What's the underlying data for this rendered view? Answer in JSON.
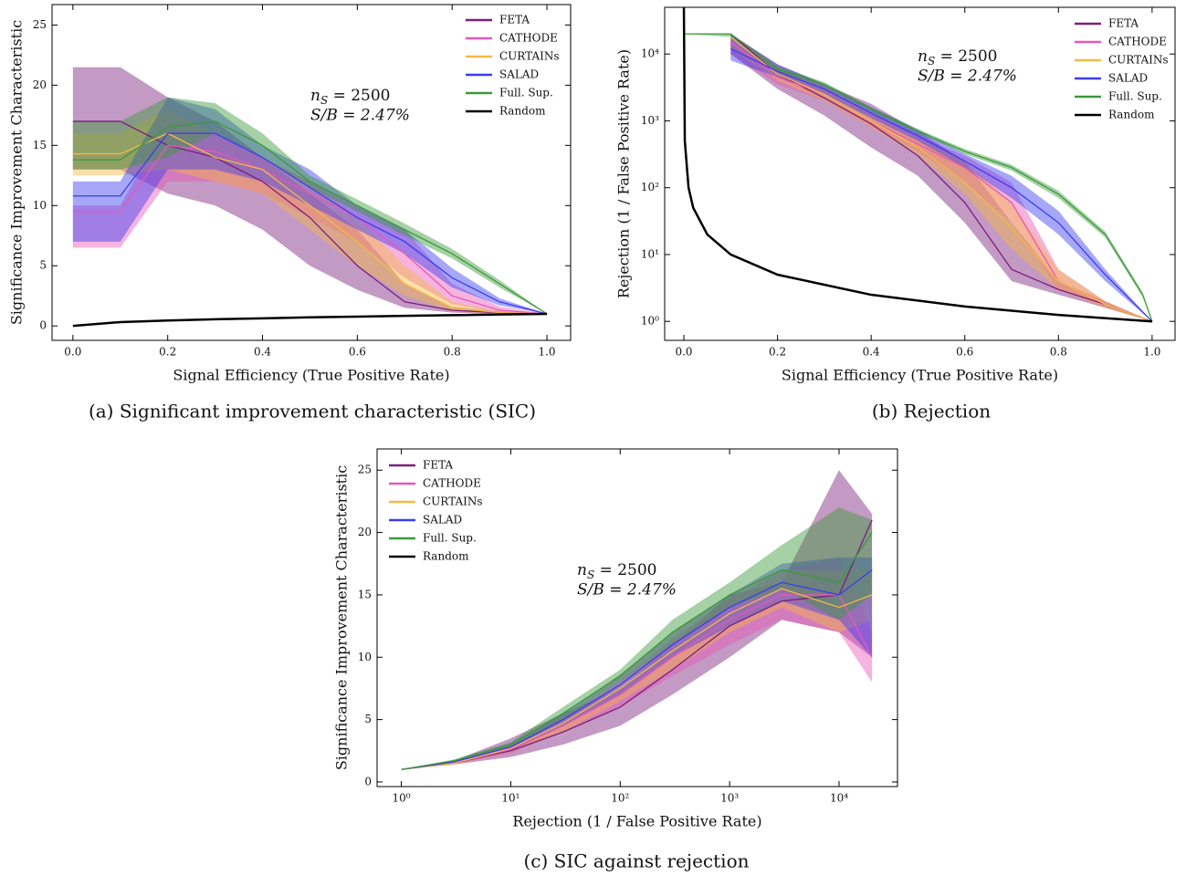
{
  "chart_data": [
    {
      "type": "line",
      "title": "(a) Significant improvement characteristic (SIC)",
      "xlabel": "Signal Efficiency (True Positive Rate)",
      "ylabel": "Significance Improvement Characteristic",
      "annotation": {
        "n": "n",
        "sub": "S",
        "rest": " = 2500",
        "line2": "S/B = 2.47%"
      },
      "xlim": [
        -0.044,
        1.05
      ],
      "ylim": [
        -1.2,
        26.7
      ],
      "yscale": "linear",
      "xscale": "linear",
      "legend": "upper right",
      "xticks": [
        {
          "value": 0,
          "label": "0.0"
        },
        0.2,
        0.4,
        0.6,
        0.8,
        {
          "value": 1,
          "label": "1.0"
        }
      ],
      "yticks": [
        0,
        5,
        10,
        15,
        20,
        25
      ],
      "series": [
        {
          "name": "FETA",
          "color": "#7b1f7c",
          "x": [
            0,
            0.1,
            0.2,
            0.3,
            0.4,
            0.5,
            0.6,
            0.7,
            0.8,
            0.9,
            1.0
          ],
          "values": [
            17,
            17,
            15,
            14,
            12,
            9,
            5,
            2,
            1.3,
            1.1,
            1
          ],
          "lower": [
            13,
            13,
            11,
            10,
            8,
            5,
            3,
            1.5,
            1.1,
            1,
            1
          ],
          "upper": [
            21.5,
            21.5,
            19,
            17,
            14,
            11,
            8,
            3.5,
            1.6,
            1.2,
            1
          ]
        },
        {
          "name": "CATHODE",
          "color": "#e857b8",
          "x": [
            0,
            0.1,
            0.2,
            0.3,
            0.4,
            0.5,
            0.6,
            0.7,
            0.8,
            0.9,
            1.0
          ],
          "values": [
            9.5,
            9.5,
            15,
            14.5,
            13,
            11,
            9,
            6,
            2.5,
            1.3,
            1
          ],
          "lower": [
            6.5,
            6.5,
            12,
            12,
            11,
            9,
            7,
            4,
            1.8,
            1.1,
            1
          ],
          "upper": [
            10,
            10,
            17,
            16,
            14,
            12,
            10,
            8,
            3.5,
            1.6,
            1
          ]
        },
        {
          "name": "CURTAINs",
          "color": "#f5b942",
          "x": [
            0,
            0.1,
            0.2,
            0.3,
            0.4,
            0.5,
            0.6,
            0.7,
            0.8,
            0.9,
            1.0
          ],
          "values": [
            14.3,
            14.3,
            16,
            14,
            13,
            10,
            7,
            3.5,
            1.5,
            1.1,
            1
          ],
          "lower": [
            12.5,
            12.5,
            13,
            12,
            11,
            8,
            5,
            2.5,
            1.2,
            1,
            1
          ],
          "upper": [
            16,
            16,
            18,
            16,
            14,
            12,
            9,
            5,
            2,
            1.2,
            1
          ]
        },
        {
          "name": "SALAD",
          "color": "#3c3cf0",
          "x": [
            0,
            0.1,
            0.2,
            0.3,
            0.4,
            0.5,
            0.6,
            0.7,
            0.8,
            0.9,
            1.0
          ],
          "values": [
            10.8,
            10.8,
            16,
            16,
            14,
            11.5,
            9,
            7,
            4,
            2,
            1
          ],
          "lower": [
            7,
            7,
            13,
            13,
            12,
            10,
            8,
            6,
            3.2,
            1.7,
            1
          ],
          "upper": [
            12,
            12,
            19,
            18,
            15,
            13,
            10,
            8,
            4.8,
            2.3,
            1
          ]
        },
        {
          "name": "Full. Sup.",
          "color": "#3a9a3a",
          "x": [
            0,
            0.1,
            0.2,
            0.3,
            0.4,
            0.5,
            0.6,
            0.7,
            0.8,
            0.9,
            1.0
          ],
          "values": [
            13.8,
            13.8,
            16.5,
            17,
            15,
            12,
            10,
            8,
            6,
            3.5,
            1
          ],
          "lower": [
            13,
            13,
            14,
            16,
            14,
            11.5,
            9.5,
            7.5,
            5.6,
            3.2,
            1
          ],
          "upper": [
            17,
            17,
            19,
            18.5,
            16,
            12.5,
            10.5,
            8.5,
            6.4,
            3.8,
            1
          ]
        },
        {
          "name": "Random",
          "color": "#000000",
          "x": [
            0,
            0.1,
            0.2,
            0.3,
            0.4,
            0.5,
            0.6,
            0.7,
            0.8,
            0.9,
            1.0
          ],
          "values": [
            0,
            0.32,
            0.45,
            0.55,
            0.63,
            0.71,
            0.77,
            0.84,
            0.89,
            0.95,
            1
          ]
        }
      ]
    },
    {
      "type": "line",
      "title": "(b) Rejection",
      "xlabel": "Signal Efficiency (True Positive Rate)",
      "ylabel": "Rejection (1 / False Positive Rate)",
      "annotation": {
        "n": "n",
        "sub": "S",
        "rest": " = 2500",
        "line2": "S/B = 2.47%"
      },
      "xlim": [
        -0.041,
        1.049
      ],
      "ylim": [
        0.52,
        50000
      ],
      "yscale": "log",
      "xscale": "linear",
      "legend": "upper right",
      "xticks": [
        {
          "value": 0,
          "label": "0.0"
        },
        0.2,
        0.4,
        0.6,
        0.8,
        {
          "value": 1,
          "label": "1.0"
        }
      ],
      "yticks": [
        {
          "value": 1,
          "label": "10⁰"
        },
        {
          "value": 10,
          "label": "10¹"
        },
        {
          "value": 100,
          "label": "10²"
        },
        {
          "value": 1000,
          "label": "10³"
        },
        {
          "value": 10000,
          "label": "10⁴"
        }
      ],
      "series": [
        {
          "name": "FETA",
          "color": "#7b1f7c",
          "x": [
            0.1,
            0.2,
            0.3,
            0.4,
            0.5,
            0.6,
            0.7,
            0.8,
            0.9,
            1.0
          ],
          "values": [
            20000,
            5000,
            2200,
            900,
            300,
            60,
            6,
            3,
            1.8,
            1
          ],
          "lower": [
            10000,
            3000,
            1200,
            400,
            150,
            30,
            4,
            2.5,
            1.6,
            1
          ],
          "upper": [
            20000,
            7000,
            3500,
            1800,
            700,
            250,
            30,
            4,
            2,
            1
          ]
        },
        {
          "name": "CATHODE",
          "color": "#e857b8",
          "x": [
            0.1,
            0.2,
            0.3,
            0.4,
            0.5,
            0.6,
            0.7,
            0.8,
            0.9,
            1.0
          ],
          "values": [
            15000,
            4500,
            2500,
            1000,
            450,
            200,
            60,
            4,
            1.8,
            1
          ],
          "lower": [
            10000,
            3500,
            2000,
            800,
            350,
            120,
            30,
            3,
            1.6,
            1
          ],
          "upper": [
            20000,
            6000,
            3200,
            1300,
            600,
            300,
            120,
            6,
            2,
            1
          ]
        },
        {
          "name": "CURTAINs",
          "color": "#f5b942",
          "x": [
            0.1,
            0.2,
            0.3,
            0.4,
            0.5,
            0.6,
            0.7,
            0.8,
            0.9,
            1.0
          ],
          "values": [
            18000,
            5000,
            2500,
            1000,
            400,
            120,
            25,
            4,
            1.8,
            1
          ],
          "lower": [
            12000,
            4000,
            2000,
            800,
            300,
            80,
            12,
            3,
            1.6,
            1
          ],
          "upper": [
            20000,
            6500,
            3200,
            1300,
            550,
            250,
            60,
            6,
            2,
            1
          ]
        },
        {
          "name": "SALAD",
          "color": "#3c3cf0",
          "x": [
            0.1,
            0.2,
            0.3,
            0.4,
            0.5,
            0.6,
            0.7,
            0.8,
            0.9,
            1.0
          ],
          "values": [
            12000,
            5500,
            3000,
            1300,
            600,
            250,
            100,
            30,
            5,
            1
          ],
          "lower": [
            8000,
            4500,
            2500,
            1100,
            500,
            200,
            70,
            20,
            4,
            1
          ],
          "upper": [
            20000,
            7000,
            3600,
            1600,
            750,
            320,
            150,
            45,
            6,
            1
          ]
        },
        {
          "name": "Full. Sup.",
          "color": "#3a9a3a",
          "x": [
            0,
            0.1,
            0.2,
            0.3,
            0.4,
            0.5,
            0.6,
            0.7,
            0.8,
            0.9,
            0.98,
            1.0
          ],
          "values": [
            20000,
            20000,
            6000,
            3500,
            1500,
            700,
            350,
            200,
            80,
            20,
            2.5,
            1
          ],
          "lower": [
            20000,
            18000,
            5500,
            3200,
            1400,
            650,
            320,
            180,
            70,
            18,
            2.3,
            1
          ],
          "upper": [
            20000,
            20000,
            6500,
            3800,
            1600,
            750,
            380,
            220,
            90,
            22,
            2.7,
            1
          ]
        },
        {
          "name": "Random",
          "color": "#000000",
          "x": [
            2e-05,
            0.002,
            0.01,
            0.02,
            0.05,
            0.1,
            0.2,
            0.4,
            0.6,
            0.8,
            1.0
          ],
          "values": [
            50000,
            500,
            100,
            50,
            20,
            10,
            5,
            2.5,
            1.67,
            1.25,
            1
          ]
        }
      ]
    },
    {
      "type": "line",
      "title": "(c) SIC against rejection",
      "xlabel": "Rejection (1 / False Positive Rate)",
      "ylabel": "Significance Improvement Characteristic",
      "annotation": {
        "n": "n",
        "sub": "S",
        "rest": " = 2500",
        "line2": "S/B = 2.47%"
      },
      "xlim": [
        0.6,
        34200
      ],
      "ylim": [
        -0.37,
        26.7
      ],
      "yscale": "linear",
      "xscale": "log",
      "legend": "upper left",
      "xticks": [
        {
          "value": 1,
          "label": "10⁰"
        },
        {
          "value": 10,
          "label": "10¹"
        },
        {
          "value": 100,
          "label": "10²"
        },
        {
          "value": 1000,
          "label": "10³"
        },
        {
          "value": 10000,
          "label": "10⁴"
        }
      ],
      "yticks": [
        0,
        5,
        10,
        15,
        20,
        25
      ],
      "series": [
        {
          "name": "FETA",
          "color": "#7b1f7c",
          "x": [
            1,
            3,
            10,
            30,
            100,
            300,
            1000,
            3000,
            10000,
            20000
          ],
          "values": [
            1,
            1.5,
            2.5,
            4,
            6,
            9,
            12.5,
            14.5,
            15,
            21
          ],
          "lower": [
            1,
            1.4,
            2,
            3,
            4.5,
            7,
            10,
            13,
            12,
            10
          ],
          "upper": [
            1,
            1.7,
            3.5,
            5.5,
            7.5,
            11,
            15,
            16,
            25,
            21.5
          ]
        },
        {
          "name": "CATHODE",
          "color": "#e857b8",
          "x": [
            1,
            3,
            10,
            30,
            100,
            300,
            1000,
            3000,
            10000,
            20000
          ],
          "values": [
            1,
            1.5,
            2.6,
            4.5,
            7,
            10,
            13,
            15,
            15,
            10
          ],
          "lower": [
            1,
            1.4,
            2.3,
            4,
            6,
            8.5,
            11,
            13,
            12,
            8
          ],
          "upper": [
            1,
            1.6,
            2.9,
            5,
            8,
            11.5,
            14.5,
            17,
            18,
            12
          ]
        },
        {
          "name": "CURTAINs",
          "color": "#f5b942",
          "x": [
            1,
            3,
            10,
            30,
            100,
            300,
            1000,
            3000,
            10000,
            20000
          ],
          "values": [
            1,
            1.5,
            2.7,
            4.7,
            7.5,
            10.5,
            13.5,
            15.5,
            14,
            15
          ],
          "lower": [
            1,
            1.4,
            2.4,
            4,
            6.5,
            9,
            12,
            14,
            12,
            13
          ],
          "upper": [
            1,
            1.6,
            3,
            5.3,
            8.5,
            12,
            15,
            17,
            17,
            17
          ]
        },
        {
          "name": "SALAD",
          "color": "#3c3cf0",
          "x": [
            1,
            3,
            10,
            30,
            100,
            300,
            1000,
            3000,
            10000,
            20000
          ],
          "values": [
            1,
            1.6,
            2.8,
            5,
            7.8,
            11,
            14,
            16,
            15,
            17
          ],
          "lower": [
            1,
            1.5,
            2.5,
            4.5,
            7,
            10,
            12.5,
            14.5,
            13,
            10
          ],
          "upper": [
            1,
            1.7,
            3.1,
            5.5,
            8.6,
            12,
            15,
            17.5,
            18,
            18
          ]
        },
        {
          "name": "Full. Sup.",
          "color": "#3a9a3a",
          "x": [
            1,
            3,
            10,
            30,
            100,
            300,
            1000,
            3000,
            10000,
            20000
          ],
          "values": [
            1,
            1.7,
            3,
            5.5,
            8.5,
            12,
            15,
            17,
            16,
            20
          ],
          "lower": [
            1,
            1.6,
            2.8,
            5,
            8,
            11,
            14,
            15.5,
            13,
            15
          ],
          "upper": [
            1,
            1.8,
            3.2,
            6,
            9,
            13,
            16,
            19,
            22,
            21
          ]
        },
        {
          "name": "Random",
          "color": "#000000",
          "x": [],
          "values": []
        }
      ]
    }
  ]
}
